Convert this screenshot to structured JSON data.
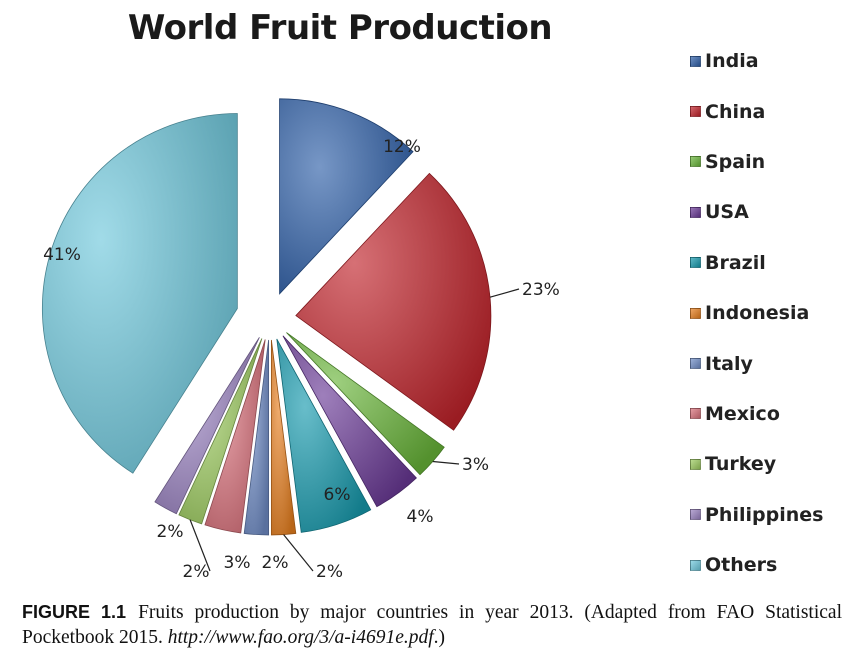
{
  "chart_data": {
    "type": "pie",
    "title": "World Fruit Production",
    "categories": [
      "India",
      "China",
      "Spain",
      "USA",
      "Brazil",
      "Indonesia",
      "Italy",
      "Mexico",
      "Turkey",
      "Philippines",
      "Others"
    ],
    "values": [
      12,
      23,
      3,
      4,
      6,
      2,
      2,
      3,
      2,
      2,
      41
    ],
    "labels": [
      "12%",
      "23%",
      "3%",
      "4%",
      "6%",
      "2%",
      "2%",
      "3%",
      "2%",
      "2%",
      "41%"
    ],
    "colors": [
      "#2e5fa8",
      "#c0232b",
      "#69b53a",
      "#6a3a96",
      "#179aad",
      "#e67e1e",
      "#6f8cc6",
      "#d8707a",
      "#9ccb5f",
      "#9a82c0",
      "#6fc8dc"
    ],
    "exploded": true,
    "legend_position": "right"
  },
  "caption": {
    "label": "FIGURE 1.1",
    "text": "Fruits production by major countries in year 2013. (Adapted from FAO Statistical Pocketbook 2015. ",
    "url": "http://www.fao.org/3/a-i4691e.pdf",
    "tail": ".)"
  }
}
